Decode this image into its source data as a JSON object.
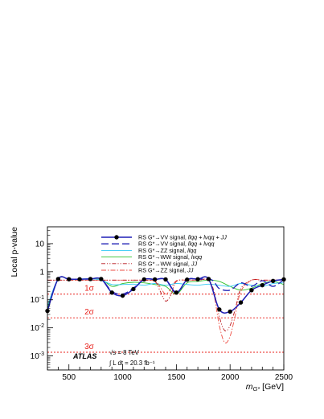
{
  "chart_data": {
    "type": "line",
    "xlabel": "m_{G*} [GeV]",
    "xlabel_main": "m",
    "xlabel_sub": "G*",
    "xlabel_unit": " [GeV]",
    "ylabel": "Local p-value",
    "xlim": [
      300,
      2500
    ],
    "ylim_log10": [
      -3.5,
      1.6
    ],
    "log_y": true,
    "x_ticks": [
      500,
      1000,
      1500,
      2000,
      2500
    ],
    "x_tick_labels": [
      "500",
      "1000",
      "1500",
      "2000",
      "2500"
    ],
    "y_ticks": [
      1,
      0,
      -1,
      -2,
      -3
    ],
    "y_tick_labels": [
      {
        "base": "10",
        "exp": ""
      },
      {
        "base": "1",
        "exp": ""
      },
      {
        "base": "10",
        "exp": "-1"
      },
      {
        "base": "10",
        "exp": "-2"
      },
      {
        "base": "10",
        "exp": "-3"
      }
    ],
    "sigma_lines": [
      {
        "label": "1σ",
        "value": 0.1587
      },
      {
        "label": "2σ",
        "value": 0.02275
      },
      {
        "label": "3σ",
        "value": 0.00135
      }
    ],
    "annotations": {
      "experiment": "ATLAS",
      "energy": "√s = 8 TeV",
      "lumi": "∫ L dt = 20.3 fb⁻¹"
    },
    "legend_position": "top-right",
    "series": [
      {
        "name": "RS G*→VV signal, llqq + lvqq + JJ",
        "label_prefix": "RS G*→VV signal, ",
        "label_italic": "llqq + lνqq + JJ",
        "color": "#1f1fb5",
        "style": "solid-markers",
        "x": [
          300,
          400,
          500,
          600,
          700,
          800,
          900,
          1000,
          1100,
          1200,
          1300,
          1400,
          1500,
          1600,
          1700,
          1800,
          1900,
          2000,
          2100,
          2200,
          2300,
          2400,
          2500
        ],
        "y": [
          0.04,
          0.55,
          0.54,
          0.54,
          0.55,
          0.55,
          0.18,
          0.14,
          0.24,
          0.53,
          0.53,
          0.53,
          0.18,
          0.52,
          0.54,
          0.55,
          0.045,
          0.038,
          0.08,
          0.22,
          0.33,
          0.47,
          0.53
        ]
      },
      {
        "name": "RS G*→VV signal, llqq + lvqq",
        "label_prefix": "RS G*→VV signal, ",
        "label_italic": "llqq + lνqq",
        "color": "#1f1fb5",
        "style": "dashed",
        "x": [
          300,
          400,
          500,
          600,
          700,
          800,
          900,
          1000,
          1100,
          1200,
          1300,
          1400,
          1500,
          1600,
          1700,
          1800,
          1850,
          1900,
          2000,
          2100,
          2200,
          2300,
          2400,
          2500
        ],
        "y": [
          0.04,
          0.55,
          0.54,
          0.54,
          0.55,
          0.55,
          0.2,
          0.16,
          0.26,
          0.53,
          0.53,
          0.52,
          0.17,
          0.52,
          0.54,
          0.55,
          0.45,
          0.25,
          0.22,
          0.4,
          0.3,
          0.48,
          0.3,
          0.52
        ]
      },
      {
        "name": "RS G*→ZZ signal, llqq",
        "label_prefix": "RS G*→ZZ signal, ",
        "label_italic": "llqq",
        "color": "#33c8f5",
        "style": "solid",
        "x": [
          300,
          400,
          500,
          600,
          700,
          800,
          900,
          1000,
          1100,
          1200,
          1300,
          1400,
          1500,
          1600,
          1700,
          1800,
          1900,
          2000,
          2100,
          2200,
          2300,
          2400,
          2500
        ],
        "y": [
          0.06,
          0.56,
          0.55,
          0.55,
          0.56,
          0.5,
          0.35,
          0.35,
          0.36,
          0.33,
          0.38,
          0.33,
          0.38,
          0.35,
          0.33,
          0.36,
          0.33,
          0.3,
          0.38,
          0.33,
          0.3,
          0.38,
          0.4
        ]
      },
      {
        "name": "RS G*→WW signal, lvqq",
        "label_prefix": "RS G*→WW signal, ",
        "label_italic": "lνqq",
        "color": "#31c22c",
        "style": "solid",
        "x": [
          300,
          400,
          500,
          600,
          700,
          800,
          900,
          1000,
          1100,
          1200,
          1300,
          1400,
          1500,
          1600,
          1700,
          1800,
          1900,
          2000,
          2100,
          2200,
          2300,
          2400,
          2500
        ],
        "y": [
          0.05,
          0.55,
          0.54,
          0.54,
          0.55,
          0.55,
          0.3,
          0.38,
          0.42,
          0.4,
          0.35,
          0.3,
          0.16,
          0.4,
          0.45,
          0.5,
          0.45,
          0.3,
          0.22,
          0.26,
          0.38,
          0.45,
          0.35
        ]
      },
      {
        "name": "RS G*→WW signal, JJ",
        "label_prefix": "RS G*→WW signal, ",
        "label_italic": "JJ",
        "color": "#b8151b",
        "style": "dash-dot-dot",
        "x": [
          300,
          400,
          500,
          600,
          700,
          800,
          900,
          1000,
          1100,
          1200,
          1300,
          1350,
          1400,
          1450,
          1500,
          1600,
          1700,
          1800,
          1850,
          1900,
          1950,
          2000,
          2050,
          2100,
          2200,
          2300,
          2400,
          2500
        ],
        "y": [
          0.5,
          0.5,
          0.5,
          0.5,
          0.5,
          0.5,
          0.5,
          0.5,
          0.5,
          0.5,
          0.45,
          0.2,
          0.09,
          0.15,
          0.45,
          0.5,
          0.5,
          0.5,
          0.2,
          0.025,
          0.008,
          0.012,
          0.05,
          0.25,
          0.5,
          0.5,
          0.5,
          0.5
        ]
      },
      {
        "name": "RS G*→ZZ signal, JJ",
        "label_prefix": "RS G*→ZZ signal, ",
        "label_italic": "JJ",
        "color": "#ee4d43",
        "style": "dash-dot",
        "x": [
          300,
          400,
          500,
          600,
          700,
          800,
          900,
          1000,
          1100,
          1200,
          1300,
          1350,
          1400,
          1450,
          1500,
          1600,
          1700,
          1800,
          1850,
          1900,
          1950,
          2000,
          2050,
          2100,
          2200,
          2300,
          2400,
          2500
        ],
        "y": [
          0.5,
          0.5,
          0.5,
          0.5,
          0.5,
          0.5,
          0.5,
          0.5,
          0.5,
          0.5,
          0.47,
          0.28,
          0.16,
          0.25,
          0.48,
          0.5,
          0.5,
          0.5,
          0.15,
          0.012,
          0.003,
          0.005,
          0.03,
          0.2,
          0.5,
          0.5,
          0.5,
          0.5
        ]
      }
    ]
  }
}
